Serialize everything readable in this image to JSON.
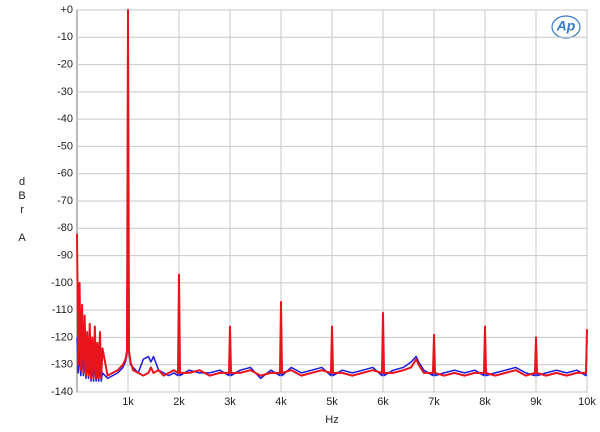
{
  "chart_data": {
    "type": "line",
    "logo": "Ap",
    "xlabel": "Hz",
    "ylabel": "dBr A",
    "xlim": [
      0,
      10000
    ],
    "ylim": [
      -140,
      0
    ],
    "grid": true,
    "xticks": [
      {
        "value": 1000,
        "label": "1k"
      },
      {
        "value": 2000,
        "label": "2k"
      },
      {
        "value": 3000,
        "label": "3k"
      },
      {
        "value": 4000,
        "label": "4k"
      },
      {
        "value": 5000,
        "label": "5k"
      },
      {
        "value": 6000,
        "label": "6k"
      },
      {
        "value": 7000,
        "label": "7k"
      },
      {
        "value": 8000,
        "label": "8k"
      },
      {
        "value": 9000,
        "label": "9k"
      },
      {
        "value": 10000,
        "label": "10k"
      }
    ],
    "yticks": [
      {
        "value": 0,
        "label": "+0"
      },
      -10,
      -20,
      -30,
      -40,
      -50,
      -60,
      -70,
      -80,
      -90,
      -100,
      -110,
      -120,
      -130,
      -140
    ],
    "x": [
      0,
      25,
      50,
      75,
      100,
      125,
      150,
      175,
      200,
      225,
      250,
      275,
      300,
      325,
      350,
      375,
      400,
      425,
      450,
      475,
      500,
      600,
      700,
      800,
      900,
      950,
      980,
      1000,
      1020,
      1050,
      1100,
      1200,
      1300,
      1400,
      1450,
      1500,
      1600,
      1700,
      1800,
      1900,
      1980,
      2000,
      2020,
      2200,
      2400,
      2600,
      2800,
      2980,
      3000,
      3020,
      3200,
      3400,
      3600,
      3800,
      3980,
      4000,
      4020,
      4200,
      4400,
      4600,
      4800,
      4980,
      5000,
      5020,
      5200,
      5400,
      5600,
      5800,
      5980,
      6000,
      6020,
      6200,
      6400,
      6550,
      6650,
      6700,
      6800,
      6980,
      7000,
      7020,
      7200,
      7400,
      7600,
      7800,
      7980,
      8000,
      8020,
      8200,
      8400,
      8600,
      8800,
      8980,
      9000,
      9020,
      9200,
      9400,
      9600,
      9800,
      9980,
      10000
    ],
    "series": [
      {
        "color": "#1a1adc",
        "values": [
          -120,
          -133,
          -125,
          -134,
          -126,
          -134,
          -128,
          -135,
          -129,
          -135,
          -130,
          -136,
          -131,
          -136,
          -130,
          -136,
          -132,
          -136,
          -131,
          -136,
          -133,
          -135,
          -134,
          -133,
          -131,
          -129,
          -126,
          -1,
          -126,
          -130,
          -131,
          -133,
          -128,
          -127,
          -129,
          -127,
          -132,
          -133,
          -134,
          -133,
          -134,
          -100,
          -134,
          -132,
          -133,
          -133,
          -132,
          -134,
          -120,
          -134,
          -132,
          -131,
          -135,
          -132,
          -134,
          -110,
          -134,
          -131,
          -133,
          -132,
          -131,
          -134,
          -120,
          -134,
          -132,
          -133,
          -132,
          -131,
          -134,
          -114,
          -134,
          -132,
          -131,
          -129,
          -127,
          -129,
          -132,
          -134,
          -122,
          -134,
          -133,
          -132,
          -133,
          -132,
          -134,
          -120,
          -134,
          -133,
          -132,
          -131,
          -133,
          -134,
          -124,
          -134,
          -133,
          -132,
          -133,
          -132,
          -134,
          -121
        ]
      },
      {
        "color": "#e8141c",
        "values": [
          -82,
          -130,
          -100,
          -132,
          -108,
          -133,
          -112,
          -134,
          -118,
          -134,
          -115,
          -135,
          -120,
          -135,
          -116,
          -135,
          -122,
          -135,
          -118,
          -135,
          -124,
          -134,
          -133,
          -132,
          -130,
          -128,
          -125,
          0,
          -125,
          -129,
          -132,
          -133,
          -134,
          -133,
          -131,
          -133,
          -132,
          -134,
          -133,
          -132,
          -133,
          -97,
          -133,
          -133,
          -132,
          -134,
          -133,
          -133,
          -116,
          -133,
          -133,
          -132,
          -134,
          -133,
          -133,
          -107,
          -133,
          -132,
          -134,
          -133,
          -132,
          -133,
          -116,
          -133,
          -133,
          -134,
          -133,
          -132,
          -133,
          -111,
          -133,
          -133,
          -132,
          -131,
          -128,
          -130,
          -133,
          -133,
          -119,
          -133,
          -134,
          -133,
          -134,
          -133,
          -133,
          -116,
          -133,
          -134,
          -133,
          -132,
          -134,
          -133,
          -120,
          -133,
          -134,
          -133,
          -134,
          -133,
          -133,
          -117
        ]
      }
    ]
  }
}
